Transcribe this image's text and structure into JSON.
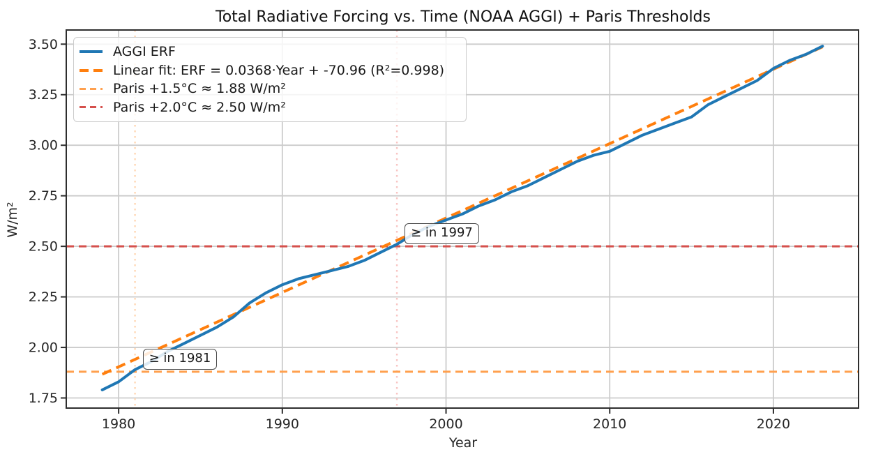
{
  "chart_data": {
    "type": "line",
    "title": "Total Radiative Forcing vs. Time (NOAA AGGI) + Paris Thresholds",
    "xlabel": "Year",
    "ylabel": "W/m²",
    "xlim": [
      1976.8,
      2025.2
    ],
    "ylim": [
      1.7,
      3.57
    ],
    "xticks": [
      1980,
      1990,
      2000,
      2010,
      2020
    ],
    "yticks": [
      1.75,
      2.0,
      2.25,
      2.5,
      2.75,
      3.0,
      3.25,
      3.5
    ],
    "grid": true,
    "legend_position": "upper-left",
    "x": [
      1979,
      1980,
      1981,
      1982,
      1983,
      1984,
      1985,
      1986,
      1987,
      1988,
      1989,
      1990,
      1991,
      1992,
      1993,
      1994,
      1995,
      1996,
      1997,
      1998,
      1999,
      2000,
      2001,
      2002,
      2003,
      2004,
      2005,
      2006,
      2007,
      2008,
      2009,
      2010,
      2011,
      2012,
      2013,
      2014,
      2015,
      2016,
      2017,
      2018,
      2019,
      2020,
      2021,
      2022,
      2023
    ],
    "series": [
      {
        "name": "AGGI ERF",
        "color": "#1f77b4",
        "style": "solid",
        "values": [
          1.79,
          1.83,
          1.89,
          1.93,
          1.98,
          2.02,
          2.06,
          2.1,
          2.15,
          2.22,
          2.27,
          2.31,
          2.34,
          2.36,
          2.38,
          2.4,
          2.43,
          2.47,
          2.51,
          2.56,
          2.6,
          2.63,
          2.66,
          2.7,
          2.73,
          2.77,
          2.8,
          2.84,
          2.88,
          2.92,
          2.95,
          2.97,
          3.01,
          3.05,
          3.08,
          3.11,
          3.14,
          3.2,
          3.24,
          3.28,
          3.32,
          3.38,
          3.42,
          3.45,
          3.49
        ]
      },
      {
        "name": "Linear fit: ERF = 0.0368·Year + -70.96  (R²=0.998)",
        "color": "#ff7f0e",
        "style": "dashed",
        "fit": {
          "slope": 0.0368,
          "intercept": -70.96,
          "x_start": 1979,
          "x_end": 2023,
          "r2": 0.998
        }
      }
    ],
    "thresholds": [
      {
        "label": "Paris +1.5°C ≈ 1.88 W/m²",
        "value": 1.88,
        "color": "#ffa04e",
        "style": "dashed"
      },
      {
        "label": "Paris +2.0°C ≈ 2.50 W/m²",
        "value": 2.5,
        "color": "#d5504c",
        "style": "dashed"
      }
    ],
    "event_lines": [
      {
        "year": 1981,
        "color": "#ffd9b8",
        "style": "dotted"
      },
      {
        "year": 1997,
        "color": "#f8c6c4",
        "style": "dotted"
      }
    ],
    "annotations": [
      {
        "text": "≥ in 1981",
        "x": 1981,
        "y": 1.88
      },
      {
        "text": "≥ in 1997",
        "x": 1997,
        "y": 2.5
      }
    ],
    "legend": {
      "entries": [
        {
          "label": "AGGI ERF",
          "color": "#1f77b4",
          "dash": "solid",
          "thick": 4
        },
        {
          "label": "Linear fit: ERF = 0.0368·Year + -70.96  (R²=0.998)",
          "color": "#ff7f0e",
          "dash": "long",
          "thick": 4
        },
        {
          "label": "Paris +1.5°C ≈ 1.88 W/m²",
          "color": "#ffa04e",
          "dash": "short",
          "thick": 3
        },
        {
          "label": "Paris +2.0°C ≈ 2.50 W/m²",
          "color": "#d5504c",
          "dash": "short",
          "thick": 3
        }
      ]
    },
    "colors": {
      "grid": "#cccccc",
      "spine": "#2e2e2e",
      "background": "#ffffff"
    }
  }
}
